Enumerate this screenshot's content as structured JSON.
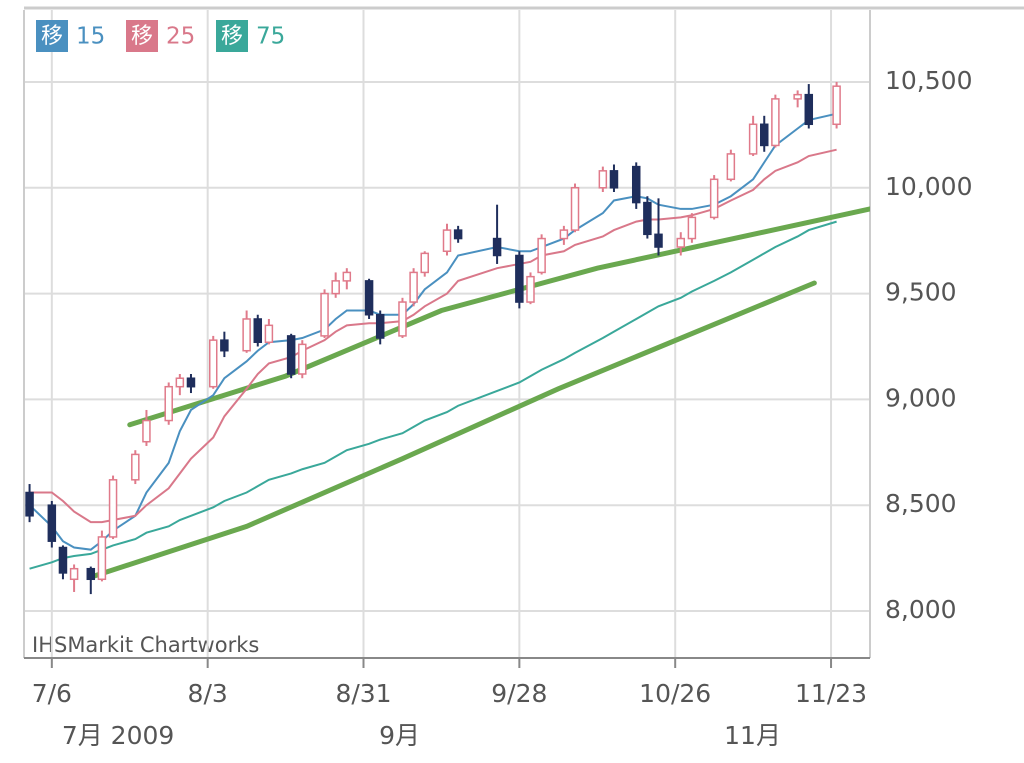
{
  "chart_data": {
    "type": "candlestick",
    "watermark": "IHSMarkit Chartworks",
    "legend_mark": "移",
    "xlim": [
      "7/1",
      "11/30"
    ],
    "ylim": [
      7778,
      10840
    ],
    "yticks": [
      {
        "value": 8000,
        "label": "8,000"
      },
      {
        "value": 8500,
        "label": "8,500"
      },
      {
        "value": 9000,
        "label": "9,000"
      },
      {
        "value": 9500,
        "label": "9,500"
      },
      {
        "value": 10000,
        "label": "10,000"
      },
      {
        "value": 10500,
        "label": "10,500"
      }
    ],
    "xticks": [
      "7/6",
      "8/3",
      "8/31",
      "9/28",
      "10/26",
      "11/23"
    ],
    "xticks2": [
      {
        "value": "7/6",
        "label": "7月 2009"
      },
      {
        "value": "9/1",
        "label": "9月"
      },
      {
        "value": "11/2",
        "label": "11月"
      }
    ],
    "grid": true,
    "up_color": "#e07a8a",
    "down_color": "#1f2e5c",
    "x": [
      "7/2",
      "7/6",
      "7/8",
      "7/10",
      "7/13",
      "7/15",
      "7/17",
      "7/21",
      "7/23",
      "7/27",
      "7/29",
      "7/31",
      "8/4",
      "8/6",
      "8/10",
      "8/12",
      "8/14",
      "8/18",
      "8/20",
      "8/24",
      "8/26",
      "8/28",
      "9/1",
      "9/3",
      "9/7",
      "9/9",
      "9/11",
      "9/15",
      "9/17",
      "9/24",
      "9/28",
      "9/30",
      "10/2",
      "10/6",
      "10/8",
      "10/13",
      "10/15",
      "10/19",
      "10/21",
      "10/23",
      "10/27",
      "10/29",
      "11/2",
      "11/5",
      "11/9",
      "11/11",
      "11/13",
      "11/17",
      "11/19",
      "11/24"
    ],
    "open": [
      8560,
      8500,
      8300,
      8150,
      8200,
      8150,
      8350,
      8620,
      8800,
      8900,
      9060,
      9100,
      9060,
      9280,
      9230,
      9380,
      9270,
      9300,
      9120,
      9300,
      9500,
      9560,
      9560,
      9400,
      9300,
      9460,
      9600,
      9700,
      9800,
      9760,
      9680,
      9460,
      9600,
      9760,
      9800,
      10000,
      10080,
      10100,
      9930,
      9780,
      9720,
      9760,
      9860,
      10040,
      10160,
      10300,
      10200,
      10420,
      10440,
      10300
    ],
    "high": [
      8600,
      8520,
      8310,
      8220,
      8210,
      8380,
      8640,
      8760,
      8950,
      9080,
      9120,
      9120,
      9300,
      9320,
      9420,
      9400,
      9380,
      9310,
      9280,
      9520,
      9600,
      9620,
      9570,
      9420,
      9480,
      9620,
      9700,
      9830,
      9820,
      9920,
      9700,
      9600,
      9780,
      9820,
      10020,
      10100,
      10110,
      10120,
      9960,
      9950,
      9790,
      9880,
      10060,
      10180,
      10340,
      10340,
      10440,
      10460,
      10490,
      10500
    ],
    "low": [
      8420,
      8300,
      8150,
      8090,
      8080,
      8140,
      8340,
      8600,
      8780,
      8880,
      9020,
      9030,
      9050,
      9200,
      9220,
      9250,
      9260,
      9100,
      9100,
      9290,
      9480,
      9520,
      9380,
      9260,
      9290,
      9440,
      9580,
      9680,
      9740,
      9640,
      9430,
      9450,
      9590,
      9730,
      9790,
      9980,
      9980,
      9900,
      9760,
      9680,
      9680,
      9740,
      9850,
      10030,
      10150,
      10170,
      10190,
      10380,
      10280,
      10280
    ],
    "close": [
      8450,
      8330,
      8180,
      8200,
      8150,
      8350,
      8620,
      8740,
      8900,
      9060,
      9100,
      9060,
      9280,
      9230,
      9380,
      9270,
      9350,
      9120,
      9260,
      9500,
      9560,
      9600,
      9400,
      9290,
      9460,
      9600,
      9690,
      9800,
      9760,
      9680,
      9460,
      9580,
      9760,
      9800,
      10000,
      10080,
      10000,
      9930,
      9780,
      9720,
      9760,
      9860,
      10040,
      10160,
      10300,
      10200,
      10420,
      10440,
      10300,
      10480
    ],
    "series": [
      {
        "name": "15",
        "color": "#4a90c0",
        "values": [
          8500,
          8400,
          8330,
          8300,
          8290,
          8330,
          8380,
          8450,
          8560,
          8700,
          8850,
          8950,
          9020,
          9100,
          9180,
          9230,
          9270,
          9280,
          9290,
          9330,
          9380,
          9420,
          9420,
          9400,
          9400,
          9450,
          9520,
          9600,
          9680,
          9720,
          9700,
          9700,
          9720,
          9760,
          9800,
          9880,
          9940,
          9960,
          9950,
          9920,
          9900,
          9900,
          9920,
          9960,
          10040,
          10120,
          10200,
          10280,
          10320,
          10350
        ]
      },
      {
        "name": "25",
        "color": "#d9788a",
        "values": [
          8560,
          8560,
          8520,
          8470,
          8420,
          8420,
          8430,
          8450,
          8500,
          8580,
          8650,
          8720,
          8820,
          8920,
          9050,
          9120,
          9170,
          9200,
          9230,
          9280,
          9320,
          9350,
          9360,
          9360,
          9370,
          9400,
          9440,
          9500,
          9560,
          9620,
          9640,
          9650,
          9680,
          9700,
          9730,
          9770,
          9800,
          9840,
          9850,
          9850,
          9860,
          9870,
          9900,
          9940,
          9990,
          10040,
          10080,
          10120,
          10150,
          10180
        ]
      },
      {
        "name": "75",
        "color": "#3aa89a",
        "values": [
          8200,
          8230,
          8250,
          8260,
          8270,
          8290,
          8310,
          8340,
          8370,
          8400,
          8430,
          8450,
          8490,
          8520,
          8560,
          8590,
          8620,
          8650,
          8670,
          8700,
          8730,
          8760,
          8790,
          8810,
          8840,
          8870,
          8900,
          8940,
          8970,
          9040,
          9080,
          9110,
          9140,
          9190,
          9220,
          9290,
          9320,
          9380,
          9410,
          9440,
          9480,
          9510,
          9560,
          9600,
          9660,
          9690,
          9720,
          9770,
          9800,
          9840
        ]
      }
    ],
    "trend_lines": [
      {
        "color": "#6aa84f",
        "x": [
          "7/20",
          "8/17",
          "9/14",
          "10/12",
          "11/30"
        ],
        "values": [
          8880,
          9110,
          9420,
          9620,
          9900
        ]
      },
      {
        "color": "#6aa84f",
        "x": [
          "7/13",
          "8/10",
          "9/7",
          "10/5",
          "11/20"
        ],
        "values": [
          8160,
          8400,
          8720,
          9050,
          9550
        ]
      }
    ]
  }
}
